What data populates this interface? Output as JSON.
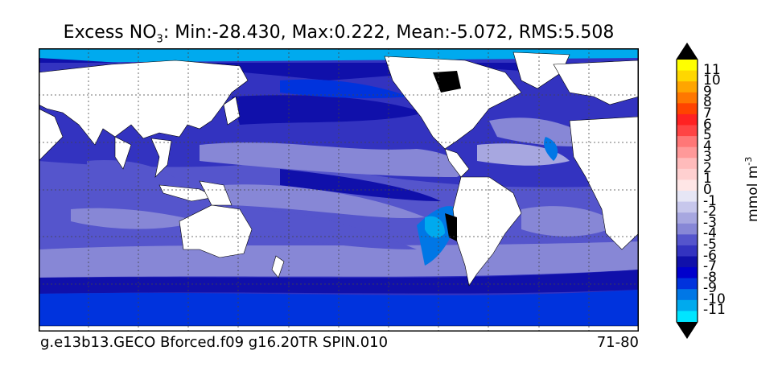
{
  "title": {
    "prefix": "Excess NO",
    "subscript": "3",
    "stats": ": Min:-28.430, Max:0.222, Mean:-5.072, RMS:5.508"
  },
  "footer": {
    "run_name": "g.e13b13.GECO Bforced.f09 g16.20TR SPIN.010",
    "years": "71-80"
  },
  "colorbar": {
    "unit_label": "mmol m",
    "unit_exponent": "-3",
    "levels": [
      "11",
      "10",
      "9",
      "8",
      "7",
      "6",
      "5",
      "4",
      "3",
      "2",
      "1",
      "0",
      "-1",
      "-2",
      "-3",
      "-4",
      "-5",
      "-6",
      "-7",
      "-8",
      "-9",
      "-10",
      "-11"
    ],
    "colors": [
      "#ffff00",
      "#ffd700",
      "#ffa500",
      "#ff7700",
      "#ff4400",
      "#ff2222",
      "#ff4444",
      "#ff7777",
      "#ff9999",
      "#ffbbbb",
      "#ffd0d0",
      "#ffe6e6",
      "#e6e6f5",
      "#c7c7ec",
      "#a7a7e0",
      "#8787d6",
      "#5555cc",
      "#3333c0",
      "#1010aa",
      "#0000cc",
      "#0033dd",
      "#0077e6",
      "#00aaee",
      "#00e5ff"
    ],
    "top_arrow_color": "#000000",
    "bottom_arrow_color": "#000000"
  },
  "map": {
    "projection": "cylindrical",
    "gridlines": true,
    "land_color": "#ffffff",
    "missing_color": "#000000"
  }
}
